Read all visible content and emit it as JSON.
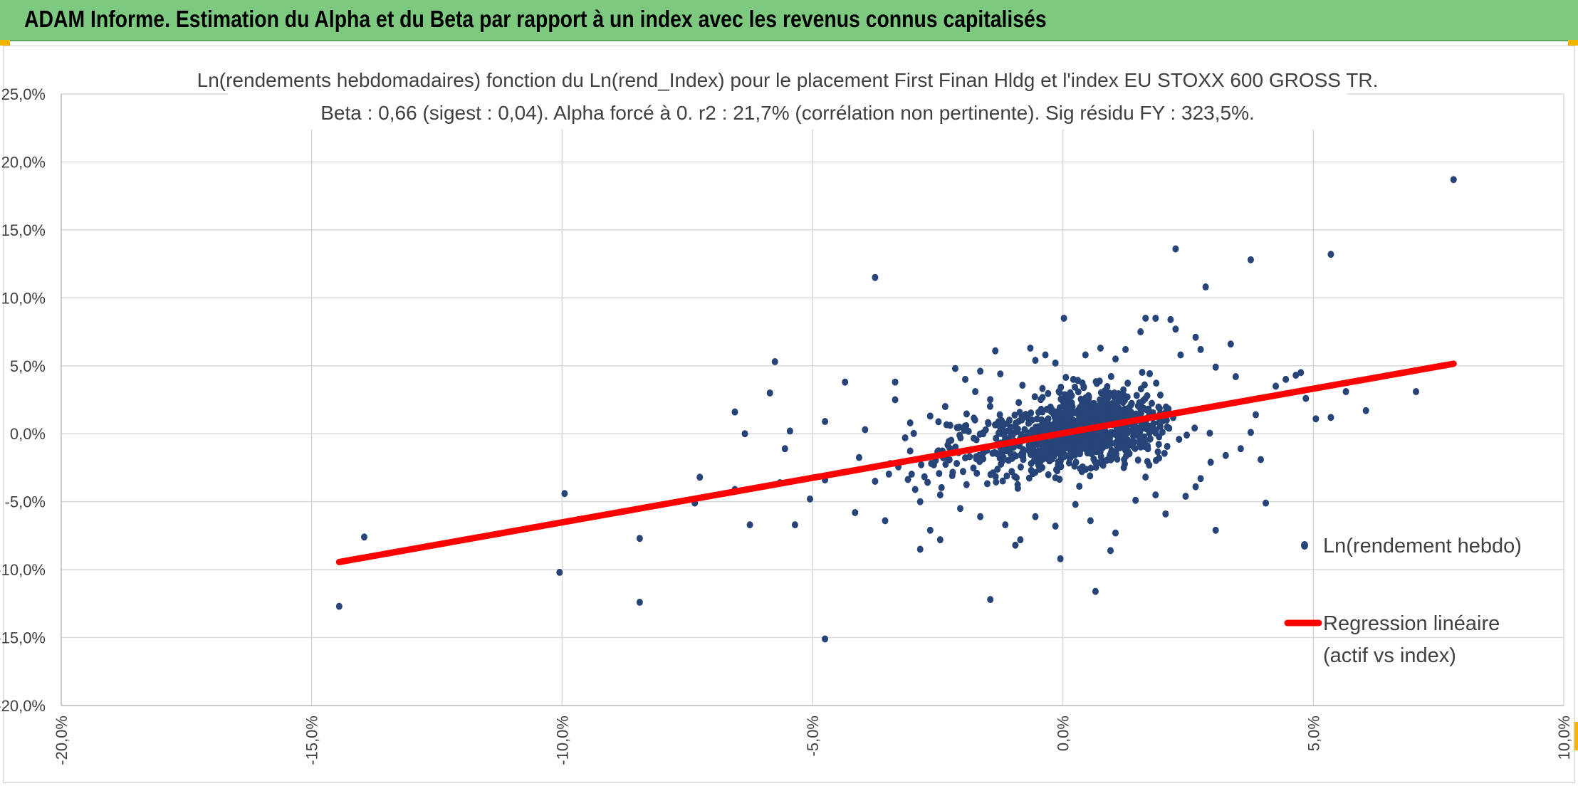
{
  "header": {
    "title": "ADAM Informe. Estimation du Alpha et du Beta par rapport à un index avec les revenus connus capitalisés"
  },
  "chart_data": {
    "type": "scatter",
    "title": "Ln(rendements hebdomadaires) fonction du Ln(rend_Index) pour le placement First Finan Hldg  et l'index EU STOXX 600 GROSS TR.",
    "subtitle": "Beta : 0,66 (sigest : 0,04). Alpha forcé à 0. r2 : 21,7% (corrélation non pertinente). Sig résidu FY : 323,5%.",
    "xlabel": "",
    "ylabel": "",
    "xlim": [
      -0.2,
      0.1
    ],
    "ylim": [
      -0.2,
      0.25
    ],
    "x_ticks": [
      -0.2,
      -0.15,
      -0.1,
      -0.05,
      0.0,
      0.05,
      0.1
    ],
    "x_tick_labels": [
      "-20,0%",
      "-15,0%",
      "-10,0%",
      "-5,0%",
      "0,0%",
      "5,0%",
      "10,0%"
    ],
    "y_ticks": [
      -0.2,
      -0.15,
      -0.1,
      -0.05,
      0.0,
      0.05,
      0.1,
      0.15,
      0.2,
      0.25
    ],
    "y_tick_labels": [
      "-20,0%",
      "-15,0%",
      "-10,0%",
      "-5,0%",
      "0,0%",
      "5,0%",
      "10,0%",
      "15,0%",
      "20,0%",
      "25,0%"
    ],
    "grid": true,
    "legend_position": "right",
    "beta": 0.66,
    "alpha": 0,
    "series": [
      {
        "name": "Ln(rendement hebdo)",
        "kind": "scatter",
        "color": "#264478",
        "points": [
          [
            0.078,
            0.187
          ],
          [
            0.0535,
            0.132
          ],
          [
            0.0375,
            0.128
          ],
          [
            0.0225,
            0.136
          ],
          [
            0.0285,
            0.108
          ],
          [
            -0.0375,
            0.115
          ],
          [
            -0.0055,
            0.054
          ],
          [
            -0.0575,
            0.053
          ],
          [
            -0.0435,
            0.038
          ],
          [
            -0.0335,
            0.038
          ],
          [
            -0.0065,
            0.063
          ],
          [
            0.0002,
            0.085
          ],
          [
            0.0165,
            0.085
          ],
          [
            0.0215,
            0.084
          ],
          [
            0.0185,
            0.085
          ],
          [
            0.0265,
            0.071
          ],
          [
            0.0335,
            0.066
          ],
          [
            0.0705,
            0.031
          ],
          [
            0.0605,
            0.017
          ],
          [
            0.0565,
            0.031
          ],
          [
            0.0535,
            0.012
          ],
          [
            0.0505,
            0.011
          ],
          [
            0.0485,
            0.026
          ],
          [
            0.0465,
            0.043
          ],
          [
            0.0425,
            0.035
          ],
          [
            0.0405,
            -0.051
          ],
          [
            0.0395,
            -0.019
          ],
          [
            0.0385,
            0.014
          ],
          [
            0.0305,
            -0.071
          ],
          [
            0.0265,
            -0.039
          ],
          [
            0.0095,
            -0.086
          ],
          [
            0.0065,
            -0.116
          ],
          [
            -0.0005,
            -0.092
          ],
          [
            -0.0095,
            -0.082
          ],
          [
            -0.0145,
            -0.122
          ],
          [
            -0.0475,
            -0.151
          ],
          [
            -0.0625,
            -0.067
          ],
          [
            -0.0655,
            0.016
          ],
          [
            -0.0635,
            0.0
          ],
          [
            -0.0555,
            -0.011
          ],
          [
            -0.0545,
            0.002
          ],
          [
            -0.0535,
            -0.067
          ],
          [
            -0.0505,
            -0.048
          ],
          [
            -0.0415,
            -0.058
          ],
          [
            -0.0375,
            -0.035
          ],
          [
            -0.0475,
            0.009
          ],
          [
            -0.0395,
            0.003
          ],
          [
            -0.0335,
            0.025
          ],
          [
            -0.0285,
            -0.085
          ],
          [
            -0.0245,
            -0.078
          ],
          [
            -0.0265,
            -0.071
          ],
          [
            -0.0285,
            -0.05
          ],
          [
            -0.0355,
            -0.064
          ],
          [
            -0.0725,
            -0.032
          ],
          [
            -0.0735,
            -0.051
          ],
          [
            -0.0845,
            -0.077
          ],
          [
            -0.0845,
            -0.124
          ],
          [
            -0.0995,
            -0.044
          ],
          [
            -0.1005,
            -0.102
          ],
          [
            -0.1395,
            -0.076
          ],
          [
            -0.1445,
            -0.127
          ],
          [
            -0.0655,
            -0.041
          ],
          [
            -0.0475,
            -0.034
          ],
          [
            -0.0565,
            -0.036
          ],
          [
            -0.0585,
            0.03
          ],
          [
            0.0475,
            0.045
          ],
          [
            0.0445,
            0.04
          ],
          [
            0.0345,
            0.042
          ],
          [
            0.0305,
            0.049
          ],
          [
            0.0275,
            0.062
          ],
          [
            0.0235,
            0.058
          ],
          [
            0.0225,
            0.077
          ],
          [
            0.0155,
            0.075
          ],
          [
            0.0125,
            0.062
          ],
          [
            0.0105,
            0.055
          ],
          [
            0.0075,
            0.063
          ],
          [
            0.0045,
            0.058
          ],
          [
            -0.0015,
            0.052
          ],
          [
            -0.0035,
            0.058
          ],
          [
            -0.0135,
            0.061
          ],
          [
            -0.0165,
            0.046
          ],
          [
            -0.0195,
            0.04
          ],
          [
            -0.0215,
            0.048
          ],
          [
            -0.0125,
            0.044
          ],
          [
            -0.0175,
            0.031
          ],
          [
            -0.0235,
            0.02
          ],
          [
            -0.0265,
            0.013
          ],
          [
            -0.0305,
            0.008
          ],
          [
            -0.0315,
            -0.003
          ],
          [
            -0.0345,
            -0.022
          ],
          [
            -0.0295,
            -0.041
          ],
          [
            -0.0245,
            -0.045
          ],
          [
            -0.0205,
            -0.055
          ],
          [
            -0.0165,
            -0.061
          ],
          [
            -0.0115,
            -0.067
          ],
          [
            -0.0085,
            -0.078
          ],
          [
            -0.0055,
            -0.061
          ],
          [
            -0.0015,
            -0.068
          ],
          [
            0.0025,
            -0.052
          ],
          [
            0.0055,
            -0.064
          ],
          [
            0.0105,
            -0.073
          ],
          [
            0.0145,
            -0.049
          ],
          [
            0.0185,
            -0.045
          ],
          [
            0.0205,
            -0.059
          ],
          [
            0.0245,
            -0.046
          ],
          [
            0.0275,
            -0.033
          ],
          [
            0.0295,
            -0.021
          ],
          [
            0.0325,
            -0.016
          ],
          [
            0.0355,
            -0.011
          ],
          [
            0.0375,
            0.001
          ]
        ]
      },
      {
        "name": "Regression linéaire\n(actif vs index)",
        "kind": "line",
        "color": "#ff0000",
        "points": [
          [
            -0.1445,
            -0.0944
          ],
          [
            0.078,
            0.0515
          ]
        ]
      }
    ],
    "legend": [
      {
        "label": "Ln(rendement hebdo)",
        "marker": "dot",
        "color": "#264478"
      },
      {
        "label_lines": [
          "Regression linéaire",
          "(actif vs index)"
        ],
        "marker": "line",
        "color": "#ff0000"
      }
    ]
  }
}
